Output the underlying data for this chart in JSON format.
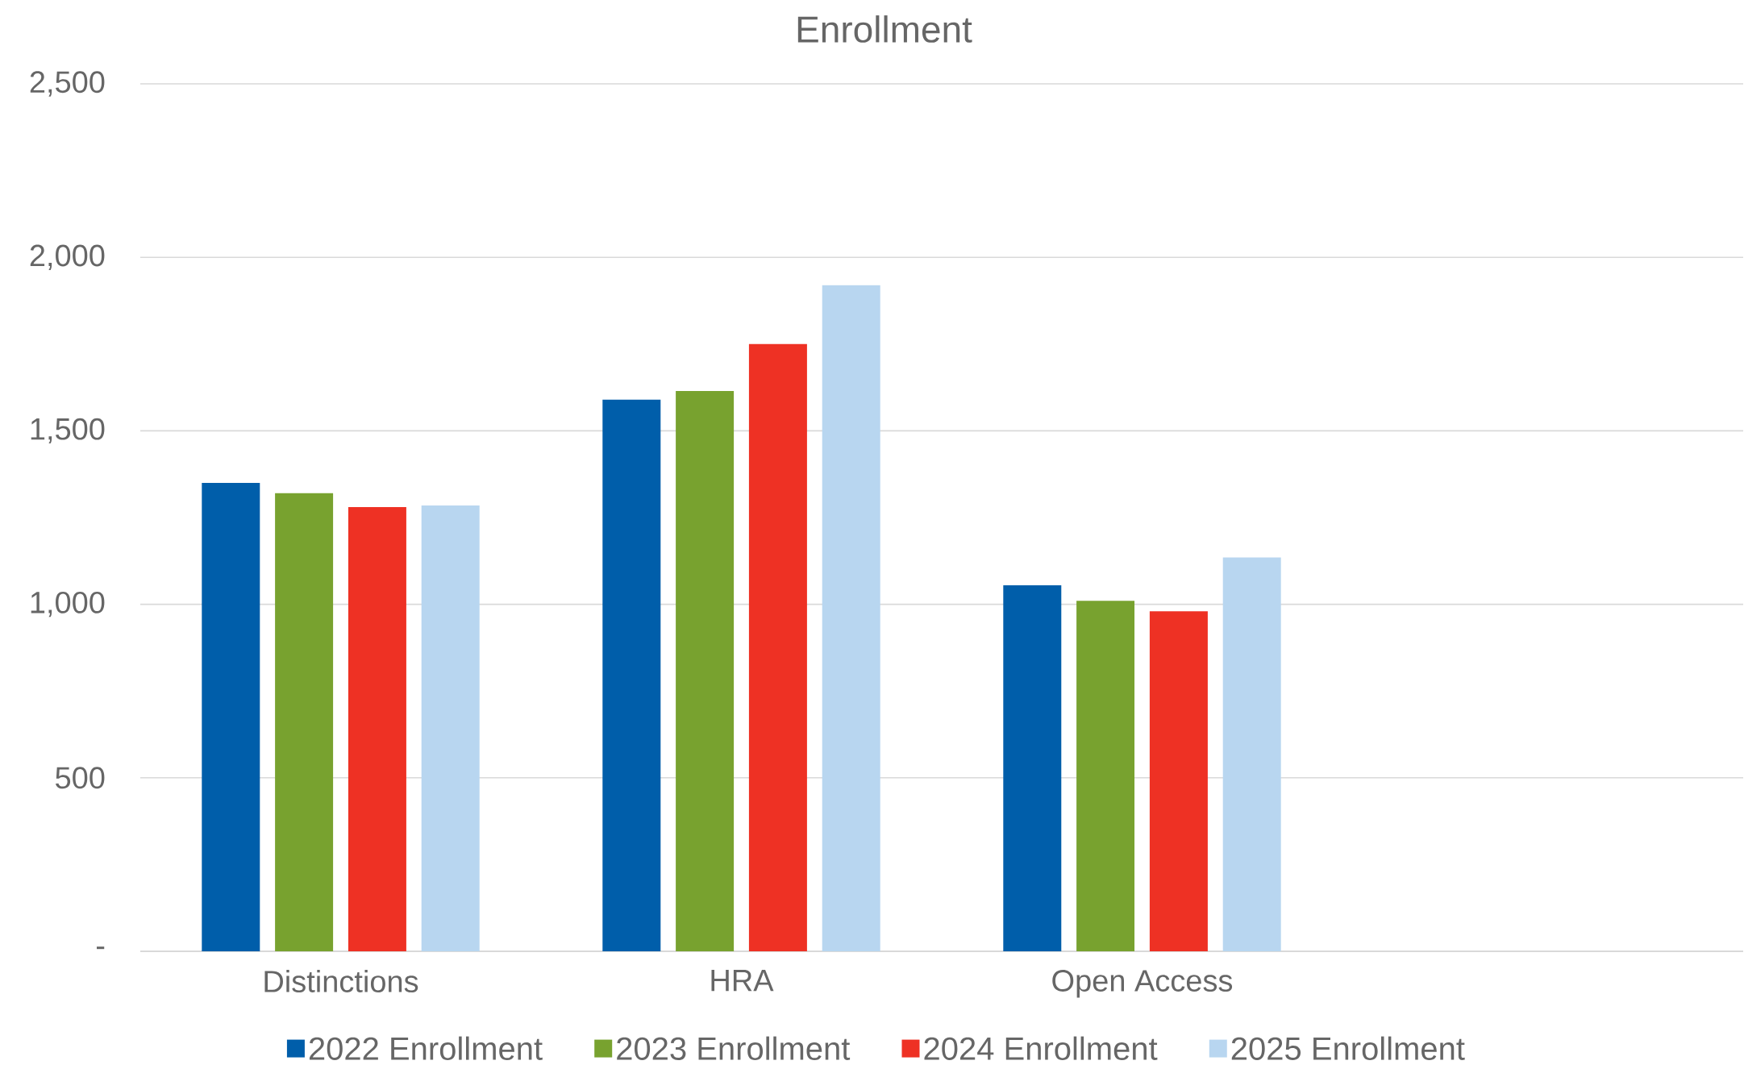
{
  "chart_data": {
    "type": "bar",
    "title": "Enrollment",
    "categories": [
      "Distinctions",
      "HRA",
      "Open Access",
      null
    ],
    "series": [
      {
        "name": "2022 Enrollment",
        "color": "#005eaa",
        "values": [
          1350,
          1590,
          1055,
          null
        ]
      },
      {
        "name": "2023 Enrollment",
        "color": "#78a22f",
        "values": [
          1320,
          1615,
          1010,
          null
        ]
      },
      {
        "name": "2024 Enrollment",
        "color": "#ee3124",
        "values": [
          1280,
          1750,
          980,
          null
        ]
      },
      {
        "name": "2025 Enrollment",
        "color": "#b8d6f0",
        "values": [
          1285,
          1920,
          1135,
          null
        ]
      }
    ],
    "ylim": [
      0,
      2500
    ],
    "yticks": [
      {
        "value": 0,
        "label": "-"
      },
      {
        "value": 500,
        "label": "500"
      },
      {
        "value": 1000,
        "label": "1,000"
      },
      {
        "value": 1500,
        "label": "1,500"
      },
      {
        "value": 2000,
        "label": "2,000"
      },
      {
        "value": 2500,
        "label": "2,500"
      }
    ],
    "grid": "y",
    "legend": "bottom"
  }
}
